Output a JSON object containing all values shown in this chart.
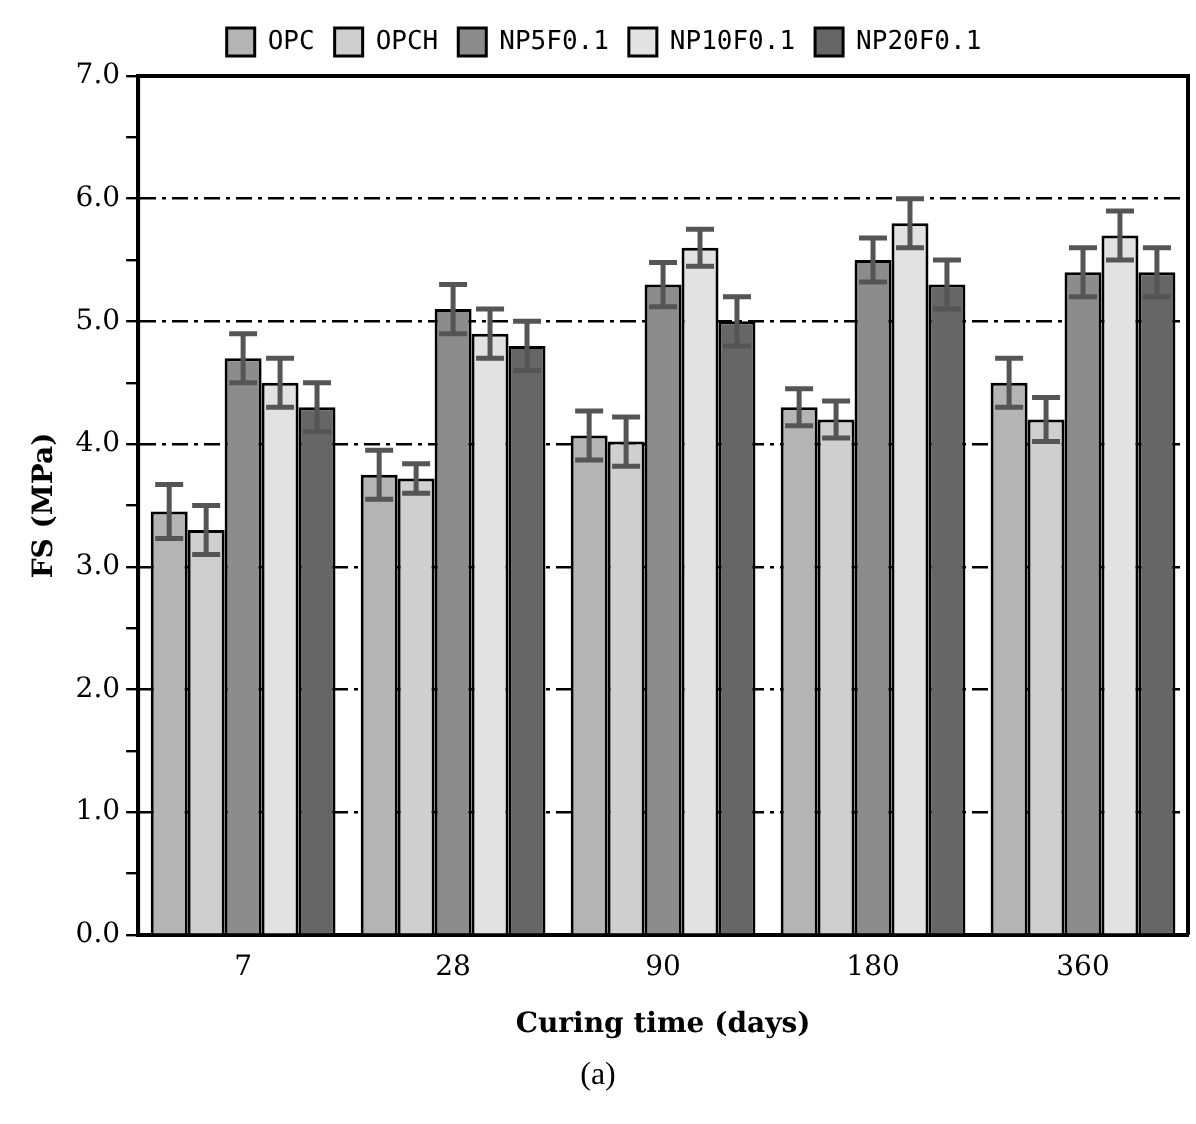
{
  "chart_data": {
    "type": "bar",
    "xlabel": "Curing time (days)",
    "ylabel": "FS (MPa)",
    "categories": [
      "7",
      "28",
      "90",
      "180",
      "360"
    ],
    "series": [
      {
        "name": "OPC",
        "color": "#b4b4b4",
        "values": [
          3.45,
          3.75,
          4.07,
          4.3,
          4.5
        ],
        "errors": [
          0.22,
          0.2,
          0.2,
          0.15,
          0.2
        ]
      },
      {
        "name": "OPCH",
        "color": "#cfcfcf",
        "values": [
          3.3,
          3.72,
          4.02,
          4.2,
          4.2
        ],
        "errors": [
          0.2,
          0.12,
          0.2,
          0.15,
          0.18
        ]
      },
      {
        "name": "NP5F0.1",
        "color": "#8c8c8c",
        "values": [
          4.7,
          5.1,
          5.3,
          5.5,
          5.4
        ],
        "errors": [
          0.2,
          0.2,
          0.18,
          0.18,
          0.2
        ]
      },
      {
        "name": "NP10F0.1",
        "color": "#e2e2e2",
        "values": [
          4.5,
          4.9,
          5.6,
          5.8,
          5.7
        ],
        "errors": [
          0.2,
          0.2,
          0.15,
          0.2,
          0.2
        ]
      },
      {
        "name": "NP20F0.1",
        "color": "#666666",
        "values": [
          4.3,
          4.8,
          5.0,
          5.3,
          5.4
        ],
        "errors": [
          0.2,
          0.2,
          0.2,
          0.2,
          0.2
        ]
      }
    ],
    "ylim": [
      0,
      7
    ],
    "yticks": [
      {
        "value": 0,
        "label": "0.0"
      },
      {
        "value": 0.5,
        "label": null
      },
      {
        "value": 1,
        "label": "1.0"
      },
      {
        "value": 1.5,
        "label": null
      },
      {
        "value": 2,
        "label": "2.0"
      },
      {
        "value": 2.5,
        "label": null
      },
      {
        "value": 3,
        "label": "3.0"
      },
      {
        "value": 3.5,
        "label": null
      },
      {
        "value": 4,
        "label": "4.0"
      },
      {
        "value": 4.5,
        "label": null
      },
      {
        "value": 5,
        "label": "5.0"
      },
      {
        "value": 5.5,
        "label": null
      },
      {
        "value": 6,
        "label": "6.0"
      },
      {
        "value": 6.5,
        "label": null
      },
      {
        "value": 7,
        "label": "7.0"
      }
    ],
    "grid": "y",
    "line_style": "dashdot",
    "legend": "top",
    "annotations": [
      "(a)"
    ]
  }
}
